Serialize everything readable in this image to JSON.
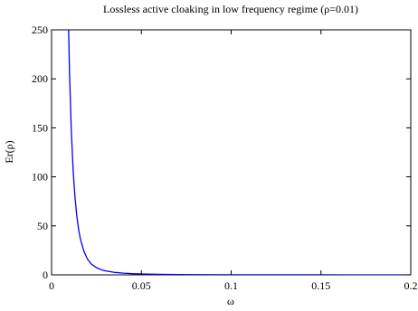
{
  "chart_data": {
    "type": "line",
    "title": "Lossless active cloaking in low frequency regime (ρ=0.01)",
    "xlabel": "ω",
    "ylabel": "Er(ρ)",
    "xlim": [
      0,
      0.2
    ],
    "ylim": [
      0,
      250
    ],
    "xticks": [
      0,
      0.05,
      0.1,
      0.15,
      0.2
    ],
    "xtick_labels": [
      "0",
      "0.05",
      "0.1",
      "0.15",
      "0.2"
    ],
    "yticks": [
      0,
      50,
      100,
      150,
      200,
      250
    ],
    "ytick_labels": [
      "0",
      "50",
      "100",
      "150",
      "200",
      "250"
    ],
    "grid": false,
    "legend": "none",
    "series": [
      {
        "color": "#0000ff",
        "x": [
          0.0095,
          0.01,
          0.011,
          0.012,
          0.013,
          0.014,
          0.015,
          0.016,
          0.018,
          0.02,
          0.022,
          0.025,
          0.028,
          0.03,
          0.035,
          0.04,
          0.045,
          0.05,
          0.06,
          0.07,
          0.08,
          0.1,
          0.12,
          0.15,
          0.2
        ],
        "y": [
          250,
          206,
          147,
          107,
          80,
          61,
          47,
          37,
          24,
          16,
          11.2,
          7.3,
          5.0,
          4.0,
          2.5,
          1.7,
          1.2,
          0.9,
          0.55,
          0.36,
          0.25,
          0.13,
          0.08,
          0.04,
          0.02
        ]
      }
    ]
  }
}
